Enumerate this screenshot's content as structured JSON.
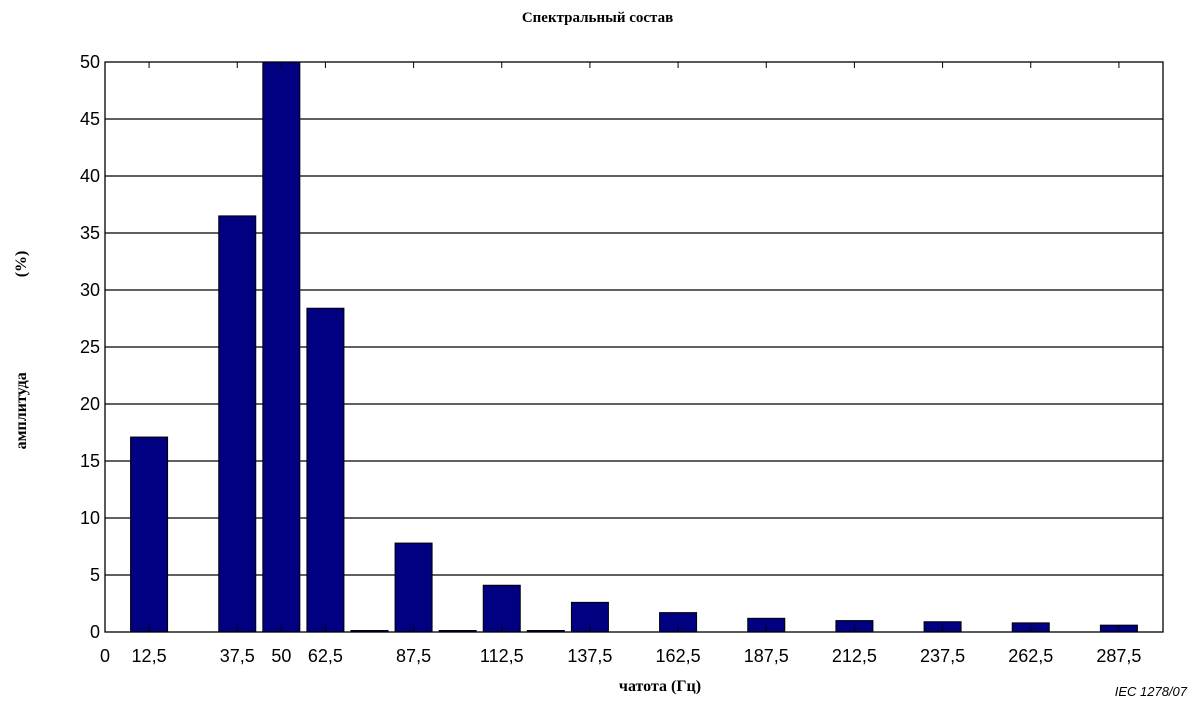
{
  "chart_data": {
    "type": "bar",
    "title": "Спектральный состав",
    "ylabel": "амплитуда",
    "yunit": "(%)",
    "xlabel": "чатота (Гц)",
    "ylim": [
      0,
      50
    ],
    "xlim": [
      0,
      300
    ],
    "yticks": [
      0,
      5,
      10,
      15,
      20,
      25,
      30,
      35,
      40,
      45,
      50
    ],
    "xtick_labels": [
      "0",
      "12,5",
      "37,5",
      "50",
      "62,5",
      "87,5",
      "112,5",
      "137,5",
      "162,5",
      "187,5",
      "212,5",
      "237,5",
      "262,5",
      "287,5"
    ],
    "grid": "horizontal",
    "bar_color": "#000080",
    "x": [
      12.5,
      37.5,
      50,
      62.5,
      75,
      87.5,
      100,
      112.5,
      125,
      137.5,
      162.5,
      187.5,
      212.5,
      237.5,
      262.5,
      287.5
    ],
    "values": [
      17.1,
      36.5,
      50,
      28.4,
      0.1,
      7.8,
      0.1,
      4.1,
      0.1,
      2.6,
      1.7,
      1.2,
      1.0,
      0.9,
      0.8,
      0.6
    ]
  },
  "credit": "IEC   1278/07"
}
